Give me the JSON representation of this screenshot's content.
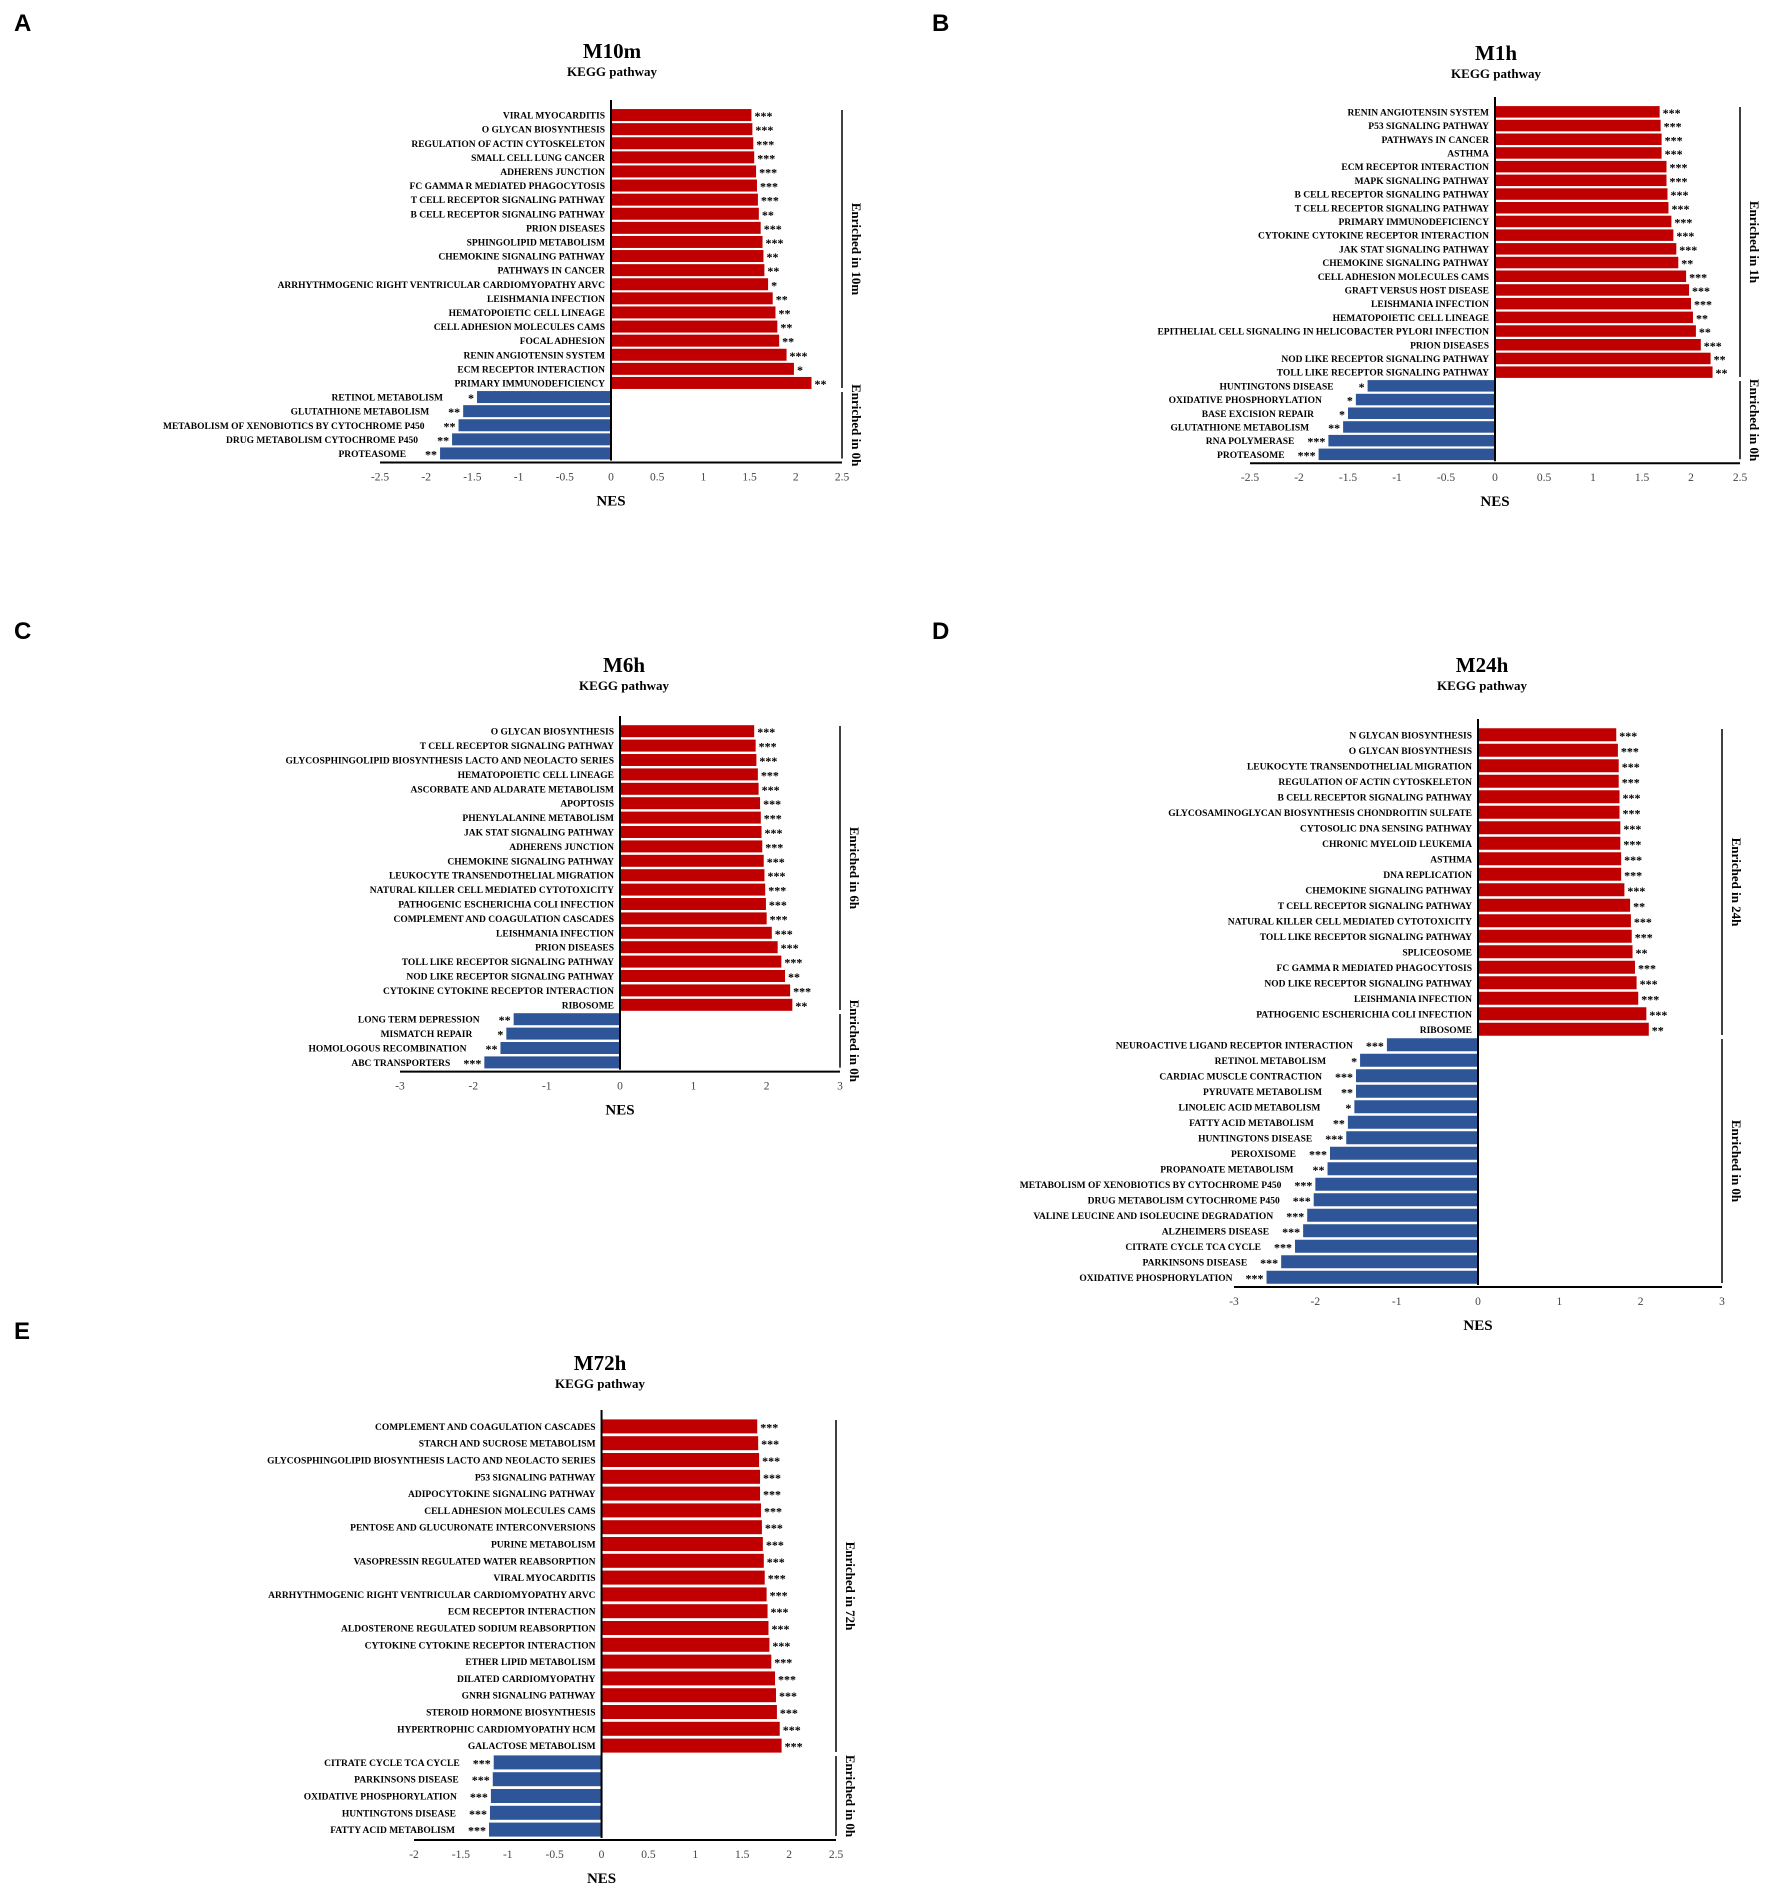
{
  "figure_name": "KEGG pathway GSEA NES panels",
  "colors": {
    "positive": "#c00000",
    "negative": "#2e5597",
    "axis": "#000000",
    "tick": "#444444"
  },
  "chart_data": [
    {
      "panel": "A",
      "type": "bar",
      "orientation": "horizontal",
      "title": "M10m",
      "subtitle": "KEGG pathway",
      "xlabel": "NES",
      "xlim": [
        -2.5,
        2.5
      ],
      "xticks": [
        -2.5,
        -2,
        -1.5,
        -1,
        -0.5,
        0,
        0.5,
        1,
        1.5,
        2,
        2.5
      ],
      "groups": [
        {
          "label": "Enriched in 10m",
          "start": 0,
          "end": 19
        },
        {
          "label": "Enriched in 0h",
          "start": 20,
          "end": 24
        }
      ],
      "categories": [
        "VIRAL MYOCARDITIS",
        "O GLYCAN BIOSYNTHESIS",
        "REGULATION OF ACTIN CYTOSKELETON",
        "SMALL CELL LUNG CANCER",
        "ADHERENS JUNCTION",
        "FC GAMMA R MEDIATED PHAGOCYTOSIS",
        "T CELL RECEPTOR SIGNALING PATHWAY",
        "B CELL RECEPTOR SIGNALING PATHWAY",
        "PRION DISEASES",
        "SPHINGOLIPID METABOLISM",
        "CHEMOKINE SIGNALING PATHWAY",
        "PATHWAYS IN CANCER",
        "ARRHYTHMOGENIC RIGHT VENTRICULAR CARDIOMYOPATHY ARVC",
        "LEISHMANIA INFECTION",
        "HEMATOPOIETIC CELL LINEAGE",
        "CELL ADHESION MOLECULES CAMS",
        "FOCAL ADHESION",
        "RENIN ANGIOTENSIN SYSTEM",
        "ECM RECEPTOR INTERACTION",
        "PRIMARY IMMUNODEFICIENCY",
        "RETINOL METABOLISM",
        "GLUTATHIONE METABOLISM",
        "METABOLISM OF XENOBIOTICS BY CYTOCHROME P450",
        "DRUG METABOLISM CYTOCHROME P450",
        "PROTEASOME"
      ],
      "values": [
        1.52,
        1.53,
        1.54,
        1.55,
        1.57,
        1.58,
        1.59,
        1.6,
        1.62,
        1.64,
        1.65,
        1.66,
        1.7,
        1.75,
        1.78,
        1.8,
        1.82,
        1.9,
        1.98,
        2.17,
        -1.45,
        -1.6,
        -1.65,
        -1.72,
        -1.85
      ],
      "significance": [
        "***",
        "***",
        "***",
        "***",
        "***",
        "***",
        "***",
        "**",
        "***",
        "***",
        "**",
        "**",
        "*",
        "**",
        "**",
        "**",
        "**",
        "***",
        "*",
        "**",
        "*",
        "**",
        "**",
        "**",
        "**"
      ]
    },
    {
      "panel": "B",
      "type": "bar",
      "orientation": "horizontal",
      "title": "M1h",
      "subtitle": "KEGG pathway",
      "xlabel": "NES",
      "xlim": [
        -2.5,
        2.5
      ],
      "xticks": [
        -2.5,
        -2,
        -1.5,
        -1,
        -0.5,
        0,
        0.5,
        1,
        1.5,
        2,
        2.5
      ],
      "groups": [
        {
          "label": "Enriched in 1h",
          "start": 0,
          "end": 19
        },
        {
          "label": "Enriched in 0h",
          "start": 20,
          "end": 25
        }
      ],
      "categories": [
        "RENIN ANGIOTENSIN SYSTEM",
        "P53 SIGNALING PATHWAY",
        "PATHWAYS IN CANCER",
        "ASTHMA",
        "ECM RECEPTOR INTERACTION",
        "MAPK SIGNALING PATHWAY",
        "B CELL RECEPTOR SIGNALING PATHWAY",
        "T CELL RECEPTOR SIGNALING PATHWAY",
        "PRIMARY IMMUNODEFICIENCY",
        "CYTOKINE CYTOKINE RECEPTOR INTERACTION",
        "JAK STAT SIGNALING PATHWAY",
        "CHEMOKINE SIGNALING PATHWAY",
        "CELL ADHESION MOLECULES CAMS",
        "GRAFT VERSUS HOST DISEASE",
        "LEISHMANIA INFECTION",
        "HEMATOPOIETIC CELL LINEAGE",
        "EPITHELIAL CELL SIGNALING IN HELICOBACTER PYLORI INFECTION",
        "PRION DISEASES",
        "NOD LIKE RECEPTOR SIGNALING PATHWAY",
        "TOLL LIKE RECEPTOR SIGNALING PATHWAY",
        "HUNTINGTONS DISEASE",
        "OXIDATIVE PHOSPHORYLATION",
        "BASE EXCISION REPAIR",
        "GLUTATHIONE METABOLISM",
        "RNA POLYMERASE",
        "PROTEASOME"
      ],
      "values": [
        1.68,
        1.69,
        1.7,
        1.7,
        1.75,
        1.75,
        1.76,
        1.77,
        1.8,
        1.82,
        1.85,
        1.87,
        1.95,
        1.98,
        2.0,
        2.02,
        2.05,
        2.1,
        2.2,
        2.22,
        -1.3,
        -1.42,
        -1.5,
        -1.55,
        -1.7,
        -1.8
      ],
      "significance": [
        "***",
        "***",
        "***",
        "***",
        "***",
        "***",
        "***",
        "***",
        "***",
        "***",
        "***",
        "**",
        "***",
        "***",
        "***",
        "**",
        "**",
        "***",
        "**",
        "**",
        "*",
        "*",
        "*",
        "**",
        "***",
        "***"
      ]
    },
    {
      "panel": "C",
      "type": "bar",
      "orientation": "horizontal",
      "title": "M6h",
      "subtitle": "KEGG pathway",
      "xlabel": "NES",
      "xlim": [
        -3,
        3
      ],
      "xticks": [
        -3,
        -2,
        -1,
        0,
        1,
        2,
        3
      ],
      "groups": [
        {
          "label": "Enriched in 6h",
          "start": 0,
          "end": 19
        },
        {
          "label": "Enriched in 0h",
          "start": 20,
          "end": 23
        }
      ],
      "categories": [
        "O GLYCAN BIOSYNTHESIS",
        "T CELL RECEPTOR SIGNALING PATHWAY",
        "GLYCOSPHINGOLIPID BIOSYNTHESIS LACTO AND NEOLACTO SERIES",
        "HEMATOPOIETIC CELL LINEAGE",
        "ASCORBATE AND ALDARATE METABOLISM",
        "APOPTOSIS",
        "PHENYLALANINE METABOLISM",
        "JAK STAT SIGNALING PATHWAY",
        "ADHERENS JUNCTION",
        "CHEMOKINE SIGNALING PATHWAY",
        "LEUKOCYTE TRANSENDOTHELIAL MIGRATION",
        "NATURAL KILLER CELL MEDIATED CYTOTOXICITY",
        "PATHOGENIC ESCHERICHIA COLI INFECTION",
        "COMPLEMENT AND COAGULATION CASCADES",
        "LEISHMANIA INFECTION",
        "PRION DISEASES",
        "TOLL LIKE RECEPTOR SIGNALING PATHWAY",
        "NOD LIKE RECEPTOR SIGNALING PATHWAY",
        "CYTOKINE CYTOKINE RECEPTOR INTERACTION",
        "RIBOSOME",
        "LONG TERM DEPRESSION",
        "MISMATCH REPAIR",
        "HOMOLOGOUS RECOMBINATION",
        "ABC TRANSPORTERS"
      ],
      "values": [
        1.83,
        1.85,
        1.86,
        1.88,
        1.89,
        1.91,
        1.92,
        1.93,
        1.94,
        1.96,
        1.97,
        1.98,
        1.99,
        2.0,
        2.07,
        2.15,
        2.2,
        2.25,
        2.32,
        2.35,
        -1.45,
        -1.55,
        -1.63,
        -1.85
      ],
      "significance": [
        "***",
        "***",
        "***",
        "***",
        "***",
        "***",
        "***",
        "***",
        "***",
        "***",
        "***",
        "***",
        "***",
        "***",
        "***",
        "***",
        "***",
        "**",
        "***",
        "**",
        "**",
        "*",
        "**",
        "***"
      ]
    },
    {
      "panel": "D",
      "type": "bar",
      "orientation": "horizontal",
      "title": "M24h",
      "subtitle": "KEGG pathway",
      "xlabel": "NES",
      "xlim": [
        -3,
        3
      ],
      "xticks": [
        -3,
        -2,
        -1,
        0,
        1,
        2,
        3
      ],
      "groups": [
        {
          "label": "Enriched in 24h",
          "start": 0,
          "end": 19
        },
        {
          "label": "Enriched in 0h",
          "start": 20,
          "end": 35
        }
      ],
      "categories": [
        "N GLYCAN BIOSYNTHESIS",
        "O GLYCAN BIOSYNTHESIS",
        "LEUKOCYTE TRANSENDOTHELIAL MIGRATION",
        "REGULATION OF ACTIN CYTOSKELETON",
        "B CELL RECEPTOR SIGNALING PATHWAY",
        "GLYCOSAMINOGLYCAN BIOSYNTHESIS CHONDROITIN SULFATE",
        "CYTOSOLIC DNA SENSING PATHWAY",
        "CHRONIC MYELOID LEUKEMIA",
        "ASTHMA",
        "DNA REPLICATION",
        "CHEMOKINE SIGNALING PATHWAY",
        "T CELL RECEPTOR SIGNALING PATHWAY",
        "NATURAL KILLER CELL MEDIATED CYTOTOXICITY",
        "TOLL LIKE RECEPTOR SIGNALING PATHWAY",
        "SPLICEOSOME",
        "FC GAMMA R MEDIATED PHAGOCYTOSIS",
        "NOD LIKE RECEPTOR SIGNALING PATHWAY",
        "LEISHMANIA INFECTION",
        "PATHOGENIC ESCHERICHIA COLI INFECTION",
        "RIBOSOME",
        "NEUROACTIVE LIGAND RECEPTOR INTERACTION",
        "RETINOL METABOLISM",
        "CARDIAC MUSCLE CONTRACTION",
        "PYRUVATE METABOLISM",
        "LINOLEIC ACID METABOLISM",
        "FATTY ACID METABOLISM",
        "HUNTINGTONS DISEASE",
        "PEROXISOME",
        "PROPANOATE METABOLISM",
        "METABOLISM OF XENOBIOTICS BY CYTOCHROME P450",
        "DRUG METABOLISM CYTOCHROME P450",
        "VALINE LEUCINE AND ISOLEUCINE DEGRADATION",
        "ALZHEIMERS DISEASE",
        "CITRATE CYCLE TCA CYCLE",
        "PARKINSONS DISEASE",
        "OXIDATIVE PHOSPHORYLATION"
      ],
      "values": [
        1.7,
        1.72,
        1.73,
        1.73,
        1.74,
        1.74,
        1.75,
        1.75,
        1.76,
        1.76,
        1.8,
        1.87,
        1.88,
        1.89,
        1.9,
        1.93,
        1.95,
        1.97,
        2.07,
        2.1,
        -1.12,
        -1.45,
        -1.5,
        -1.5,
        -1.52,
        -1.6,
        -1.62,
        -1.82,
        -1.85,
        -2.0,
        -2.02,
        -2.1,
        -2.15,
        -2.25,
        -2.42,
        -2.6
      ],
      "significance": [
        "***",
        "***",
        "***",
        "***",
        "***",
        "***",
        "***",
        "***",
        "***",
        "***",
        "***",
        "**",
        "***",
        "***",
        "**",
        "***",
        "***",
        "***",
        "***",
        "**",
        "***",
        "*",
        "***",
        "**",
        "*",
        "**",
        "***",
        "***",
        "**",
        "***",
        "***",
        "***",
        "***",
        "***",
        "***",
        "***"
      ]
    },
    {
      "panel": "E",
      "type": "bar",
      "orientation": "horizontal",
      "title": "M72h",
      "subtitle": "KEGG pathway",
      "xlabel": "NES",
      "xlim": [
        -2,
        2.5
      ],
      "xticks": [
        -2,
        -1.5,
        -1,
        -0.5,
        0,
        0.5,
        1,
        1.5,
        2,
        2.5
      ],
      "groups": [
        {
          "label": "Enriched in 72h",
          "start": 0,
          "end": 19
        },
        {
          "label": "Enriched in 0h",
          "start": 20,
          "end": 24
        }
      ],
      "categories": [
        "COMPLEMENT AND COAGULATION CASCADES",
        "STARCH AND SUCROSE METABOLISM",
        "GLYCOSPHINGOLIPID BIOSYNTHESIS LACTO AND NEOLACTO SERIES",
        "P53 SIGNALING PATHWAY",
        "ADIPOCYTOKINE SIGNALING PATHWAY",
        "CELL ADHESION MOLECULES CAMS",
        "PENTOSE AND GLUCURONATE INTERCONVERSIONS",
        "PURINE METABOLISM",
        "VASOPRESSIN REGULATED WATER REABSORPTION",
        "VIRAL MYOCARDITIS",
        "ARRHYTHMOGENIC RIGHT VENTRICULAR CARDIOMYOPATHY ARVC",
        "ECM RECEPTOR INTERACTION",
        "ALDOSTERONE REGULATED SODIUM REABSORPTION",
        "CYTOKINE CYTOKINE RECEPTOR INTERACTION",
        "ETHER LIPID METABOLISM",
        "DILATED CARDIOMYOPATHY",
        "GNRH SIGNALING PATHWAY",
        "STEROID HORMONE BIOSYNTHESIS",
        "HYPERTROPHIC CARDIOMYOPATHY HCM",
        "GALACTOSE METABOLISM",
        "CITRATE CYCLE TCA CYCLE",
        "PARKINSONS DISEASE",
        "OXIDATIVE PHOSPHORYLATION",
        "HUNTINGTONS DISEASE",
        "FATTY ACID METABOLISM"
      ],
      "values": [
        1.66,
        1.67,
        1.68,
        1.69,
        1.69,
        1.7,
        1.71,
        1.72,
        1.73,
        1.74,
        1.76,
        1.77,
        1.78,
        1.79,
        1.81,
        1.85,
        1.86,
        1.87,
        1.9,
        1.92,
        -1.15,
        -1.16,
        -1.18,
        -1.19,
        -1.2
      ],
      "significance": [
        "***",
        "***",
        "***",
        "***",
        "***",
        "***",
        "***",
        "***",
        "***",
        "***",
        "***",
        "***",
        "***",
        "***",
        "***",
        "***",
        "***",
        "***",
        "***",
        "***",
        "***",
        "***",
        "***",
        "***",
        "***"
      ]
    }
  ]
}
